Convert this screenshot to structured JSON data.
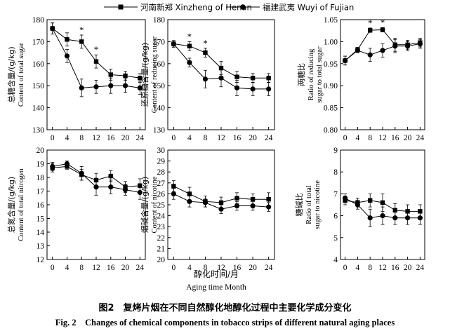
{
  "figure": {
    "caption_cn": "图2　复烤片烟在不同自然醇化地醇化过程中主要化学成分变化",
    "caption_en": "Fig. 2　Changes of chemical components in tobacco strips of different natural aging places",
    "xlabel_cn": "醇化时间/月",
    "xlabel_en": "Aging time Month"
  },
  "legend": [
    {
      "name": "河南新郑 Xinzheng of Henan",
      "marker": "square"
    },
    {
      "name": "福建武夷 Wuyi of Fujian",
      "marker": "circle"
    }
  ],
  "chart_data": [
    {
      "type": "line",
      "ylabel_cn": "总糖含量/(g/kg)",
      "ylabel_en": "Content of total sugar",
      "x": [
        0,
        4,
        8,
        12,
        16,
        20,
        24
      ],
      "xticks": [
        "0",
        "4",
        "8",
        "12",
        "16",
        "20",
        "24"
      ],
      "ylim": [
        130,
        180
      ],
      "yticks": [
        "130",
        "140",
        "150",
        "160",
        "170",
        "180"
      ],
      "series": [
        {
          "name": "河南新郑 Xinzheng of Henan",
          "values": [
            176,
            171,
            170,
            161,
            155,
            154.5,
            153.5
          ],
          "errors": [
            2.5,
            3,
            3,
            3,
            2.5,
            2,
            2
          ]
        },
        {
          "name": "福建武夷 Wuyi of Fujian",
          "values": [
            176,
            163.5,
            149,
            149.5,
            150,
            150,
            149
          ],
          "errors": [
            2.5,
            3,
            4,
            3,
            3.5,
            3,
            3
          ]
        }
      ],
      "annotations": [
        {
          "x": 8,
          "text": "*"
        },
        {
          "x": 12,
          "text": "*"
        }
      ]
    },
    {
      "type": "line",
      "ylabel_cn": "还原糖含量/(g/kg)",
      "ylabel_en": "Content of reducing sugar",
      "x": [
        0,
        4,
        8,
        12,
        16,
        20,
        24
      ],
      "xticks": [
        "0",
        "4",
        "8",
        "12",
        "16",
        "20",
        "24"
      ],
      "ylim": [
        130,
        180
      ],
      "yticks": [
        "130",
        "140",
        "150",
        "160",
        "170",
        "180"
      ],
      "series": [
        {
          "name": "河南新郑 Xinzheng of Henan",
          "values": [
            169,
            168,
            165,
            158,
            154,
            153.5,
            153.5
          ],
          "errors": [
            1.5,
            2,
            2,
            3,
            2.5,
            2,
            2
          ]
        },
        {
          "name": "福建武夷 Wuyi of Fujian",
          "values": [
            169,
            160.5,
            153,
            153.5,
            149,
            148.5,
            148.5
          ],
          "errors": [
            1.5,
            2,
            4,
            4,
            3.5,
            3,
            3
          ]
        }
      ],
      "annotations": [
        {
          "x": 4,
          "text": "*"
        },
        {
          "x": 8,
          "text": "*"
        }
      ]
    },
    {
      "type": "line",
      "ylabel_cn": "两糖比",
      "ylabel_en": "Ratio of reducing sugar to total sugar",
      "x": [
        0,
        4,
        8,
        12,
        16,
        20,
        24
      ],
      "xticks": [
        "0",
        "4",
        "8",
        "12",
        "16",
        "20",
        "24"
      ],
      "ylim": [
        0.8,
        1.05
      ],
      "yticks": [
        "0.80",
        "0.85",
        "0.90",
        "0.95",
        "1.00",
        "1.05"
      ],
      "series": [
        {
          "name": "河南新郑 Xinzheng of Henan",
          "values": [
            0.957,
            0.982,
            1.026,
            1.027,
            0.993,
            0.993,
            0.998
          ],
          "errors": [
            0.01,
            0.005,
            0.005,
            0.005,
            0.015,
            0.01,
            0.01
          ]
        },
        {
          "name": "福建武夷 Wuyi of Fujian",
          "values": [
            0.957,
            0.98,
            0.97,
            0.98,
            0.99,
            0.99,
            0.995
          ],
          "errors": [
            0.01,
            0.005,
            0.015,
            0.015,
            0.015,
            0.01,
            0.01
          ]
        }
      ],
      "annotations": [
        {
          "x": 8,
          "text": "*"
        },
        {
          "x": 12,
          "text": "*"
        }
      ]
    },
    {
      "type": "line",
      "ylabel_cn": "总氮含量/(g/kg)",
      "ylabel_en": "Content of total nitrogen",
      "x": [
        0,
        4,
        8,
        12,
        16,
        20,
        24
      ],
      "xticks": [
        "0",
        "4",
        "8",
        "12",
        "16",
        "20",
        "24"
      ],
      "ylim": [
        12,
        20
      ],
      "yticks": [
        "12",
        "13",
        "14",
        "15",
        "16",
        "17",
        "18",
        "19",
        "20"
      ],
      "series": [
        {
          "name": "河南新郑 Xinzheng of Henan",
          "values": [
            18.7,
            18.8,
            18.2,
            17.8,
            18.1,
            17.3,
            17.4
          ],
          "errors": [
            0.3,
            0.2,
            0.4,
            0.5,
            0.4,
            0.4,
            0.5
          ]
        },
        {
          "name": "福建武夷 Wuyi of Fujian",
          "values": [
            18.8,
            19.0,
            18.3,
            17.3,
            17.3,
            17.1,
            16.9
          ],
          "errors": [
            0.3,
            0.2,
            0.5,
            0.6,
            0.5,
            0.4,
            0.5
          ]
        }
      ],
      "annotations": []
    },
    {
      "type": "line",
      "ylabel_cn": "烟碱含量/(g/kg)",
      "ylabel_en": "Content of nicotine",
      "x": [
        0,
        4,
        8,
        12,
        16,
        20,
        24
      ],
      "xticks": [
        "0",
        "4",
        "8",
        "12",
        "16",
        "20",
        "24"
      ],
      "ylim": [
        20,
        30
      ],
      "yticks": [
        "20",
        "21",
        "22",
        "23",
        "24",
        "25",
        "26",
        "27",
        "28",
        "29",
        "30"
      ],
      "series": [
        {
          "name": "河南新郑 Xinzheng of Henan",
          "values": [
            26.7,
            26.0,
            25.3,
            25.2,
            25.6,
            25.5,
            25.5
          ],
          "errors": [
            0.5,
            0.6,
            0.5,
            0.5,
            0.5,
            0.5,
            0.6
          ]
        },
        {
          "name": "福建武夷 Wuyi of Fujian",
          "values": [
            26.0,
            25.3,
            25.2,
            24.6,
            24.9,
            24.9,
            24.8
          ],
          "errors": [
            0.5,
            0.5,
            0.4,
            0.4,
            0.4,
            0.4,
            0.4
          ]
        }
      ],
      "annotations": []
    },
    {
      "type": "line",
      "ylabel_cn": "糖碱比",
      "ylabel_en": "Ratio of total sugar to nicotine",
      "x": [
        0,
        4,
        8,
        12,
        16,
        20,
        24
      ],
      "xticks": [
        "0",
        "4",
        "8",
        "12",
        "16",
        "20",
        "24"
      ],
      "ylim": [
        4,
        9
      ],
      "yticks": [
        "4",
        "5",
        "6",
        "7",
        "8",
        "9"
      ],
      "series": [
        {
          "name": "河南新郑 Xinzheng of Henan",
          "values": [
            6.7,
            6.6,
            6.7,
            6.6,
            6.25,
            6.2,
            6.2
          ],
          "errors": [
            0.2,
            0.2,
            0.3,
            0.4,
            0.3,
            0.3,
            0.3
          ]
        },
        {
          "name": "福建武夷 Wuyi of Fujian",
          "values": [
            6.8,
            6.5,
            5.9,
            6.0,
            5.9,
            5.9,
            5.9
          ],
          "errors": [
            0.2,
            0.2,
            0.4,
            0.4,
            0.3,
            0.3,
            0.3
          ]
        }
      ],
      "annotations": []
    }
  ]
}
